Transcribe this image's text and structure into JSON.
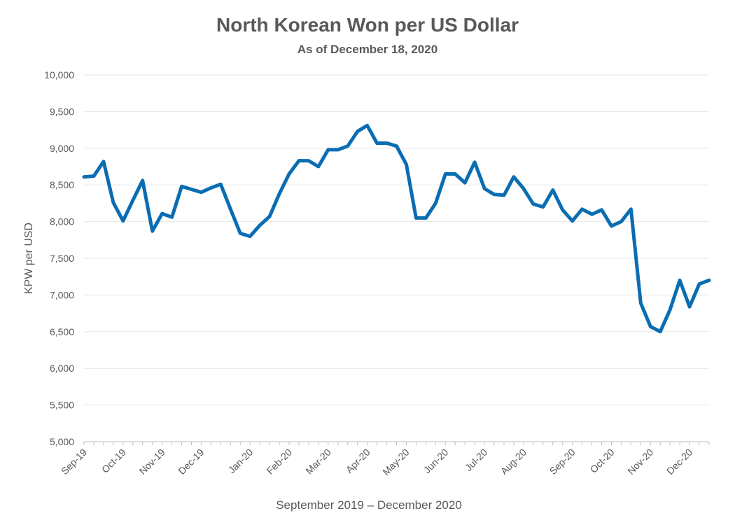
{
  "chart_data": {
    "type": "line",
    "title": "North Korean Won per US Dollar",
    "subtitle": "As of December 18, 2020",
    "ylabel": "KPW per USD",
    "xlabel": "September 2019 – December 2020",
    "ylim": [
      5000,
      10000
    ],
    "yticks": [
      "5,000",
      "5,500",
      "6,000",
      "6,500",
      "7,000",
      "7,500",
      "8,000",
      "8,500",
      "9,000",
      "9,500",
      "10,000"
    ],
    "xtick_labels": [
      "Sep-19",
      "Oct-19",
      "Nov-19",
      "Dec-19",
      "Jan-20",
      "Feb-20",
      "Mar-20",
      "Apr-20",
      "May-20",
      "Jun-20",
      "Jul-20",
      "Aug-20",
      "Sep-20",
      "Oct-20",
      "Nov-20",
      "Dec-20"
    ],
    "grid": true,
    "legend": "none",
    "series": [
      {
        "color": "#0a6db3",
        "values": [
          8610,
          8620,
          8820,
          8260,
          8010,
          8290,
          8560,
          7870,
          8110,
          8060,
          8480,
          8440,
          8400,
          8460,
          8510,
          8170,
          7840,
          7800,
          7950,
          8070,
          8380,
          8650,
          8830,
          8830,
          8750,
          8980,
          8980,
          9030,
          9230,
          9310,
          9070,
          9070,
          9030,
          8780,
          8050,
          8050,
          8250,
          8650,
          8650,
          8530,
          8810,
          8450,
          8370,
          8360,
          8610,
          8450,
          8240,
          8200,
          8430,
          8160,
          8010,
          8170,
          8100,
          8160,
          7940,
          8000,
          8170,
          6890,
          6570,
          6500,
          6800,
          7200,
          6840,
          7150,
          7200
        ]
      }
    ]
  }
}
